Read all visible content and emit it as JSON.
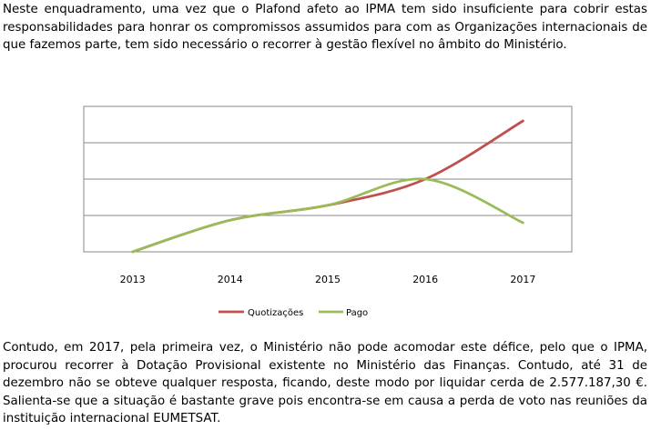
{
  "document": {
    "paragraph_1": "Neste enquadramento, uma vez que o Plafond afeto ao IPMA tem sido insuficiente para cobrir estas responsabilidades para honrar os compromissos assumidos para com as Organizações internacionais de que fazemos parte, tem sido necessário o recorrer à gestão flexível no âmbito do Ministério.",
    "paragraph_2": "Contudo, em 2017, pela primeira vez, o Ministério não pode acomodar este défice, pelo que o IPMA, procurou recorrer à Dotação Provisional existente no Ministério das Finanças. Contudo, até 31 de dezembro não se obteve qualquer resposta, ficando, deste modo por liquidar cerda de 2.577.187,30 €. Salienta-se que a situação é bastante grave pois encontra-se em causa a perda de voto nas reuniões da instituição internacional EUMETSAT."
  },
  "chart_data": {
    "type": "line",
    "categories": [
      "2013",
      "2014",
      "2015",
      "2016",
      "2017"
    ],
    "series": [
      {
        "name": "Quotizações",
        "color": "#c0504d",
        "values": [
          0,
          0.87,
          1.28,
          2.0,
          3.6
        ]
      },
      {
        "name": "Pago",
        "color": "#9bbb59",
        "values": [
          0,
          0.87,
          1.28,
          2.0,
          0.8
        ]
      }
    ],
    "ylim": [
      0,
      4
    ],
    "grid": true,
    "legend": "bottom"
  }
}
